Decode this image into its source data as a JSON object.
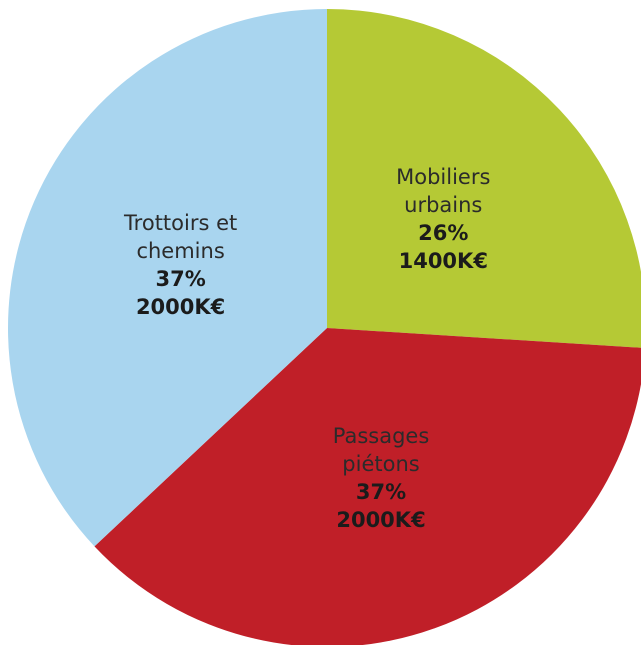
{
  "chart_data": {
    "type": "pie",
    "categories": [
      "Mobiliers urbains",
      "Passages piétons",
      "Trottoirs et chemins"
    ],
    "values": [
      26,
      37,
      37
    ],
    "value_labels": [
      "26%",
      "37%",
      "37%"
    ],
    "amounts": [
      "1400K€",
      "2000K€",
      "2000K€"
    ],
    "colors": [
      "#b5c935",
      "#c01f28",
      "#a9d5ef"
    ]
  }
}
